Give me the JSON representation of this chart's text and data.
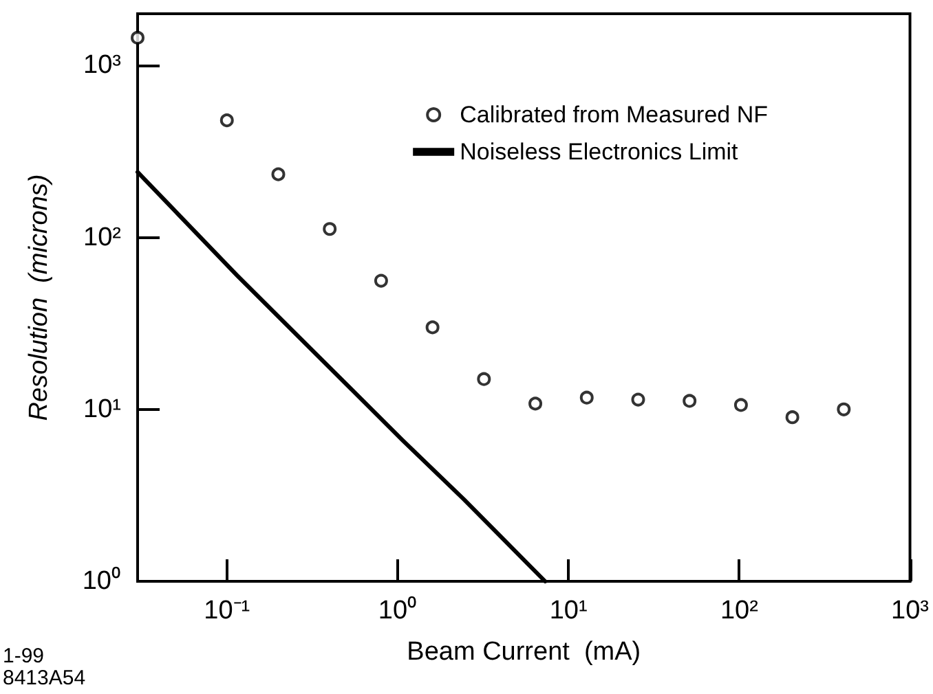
{
  "chart_data": {
    "type": "scatter",
    "xlabel": "Beam Current  (mA)",
    "ylabel": "Resolution  (microns)",
    "log": "xy",
    "grid": false,
    "legend": "top right",
    "marker": "circle",
    "xlim": [
      0.03,
      1000
    ],
    "ylim": [
      1,
      2000
    ],
    "xticks": [
      {
        "value": 0.1,
        "label": "10⁻¹"
      },
      {
        "value": 1,
        "label": "10⁰"
      },
      {
        "value": 10,
        "label": "10¹"
      },
      {
        "value": 100,
        "label": "10²"
      },
      {
        "value": 1000,
        "label": "10³"
      }
    ],
    "yticks": [
      {
        "value": 1,
        "label": "10⁰"
      },
      {
        "value": 10,
        "label": "10¹"
      },
      {
        "value": 100,
        "label": "10²"
      },
      {
        "value": 1000,
        "label": "10³"
      }
    ],
    "series": [
      {
        "name": "Calibrated from Measured NF",
        "color": "#000000",
        "x": [
          0.03,
          0.1,
          0.2,
          0.4,
          0.8,
          1.6,
          3.2,
          6.4,
          12.8,
          25.6,
          51.2,
          102.4,
          204.8,
          409.6
        ],
        "values": [
          1450,
          480,
          233,
          112,
          56,
          30,
          15,
          10.8,
          11.7,
          11.4,
          11.2,
          10.6,
          9.0,
          10.0
        ]
      },
      {
        "name": "Noiseless Electronics Limit",
        "type": "line",
        "color": "#000000",
        "line_style": "solid",
        "marker": "none",
        "x": [
          0.03,
          0.115,
          1.07,
          2.44,
          7.3
        ],
        "values": [
          240,
          60,
          6.6,
          3.0,
          1
        ]
      }
    ],
    "annotations": [
      "1-99",
      "8413A54"
    ]
  }
}
